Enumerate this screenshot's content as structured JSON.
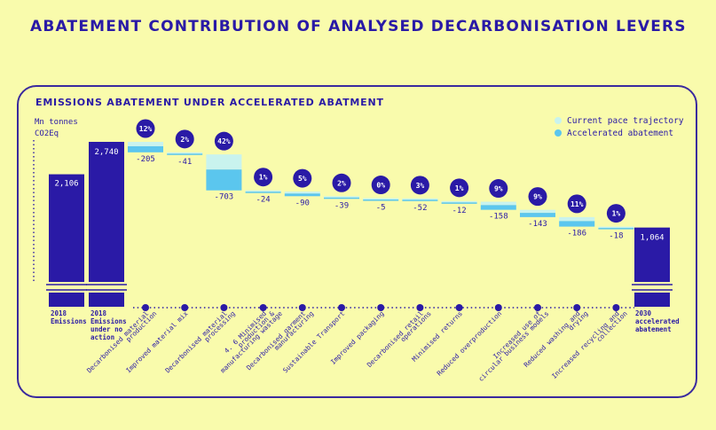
{
  "title": "ABATEMENT CONTRIBUTION OF ANALYSED DECARBONISATION LEVERS",
  "colors": {
    "background": "#f9fbac",
    "primary": "#2a1aa6",
    "accelerated": "#5bc6ee",
    "current_pace": "#c9f3ee",
    "badge": "#2a1aa6"
  },
  "chart_data": {
    "type": "waterfall",
    "title": "EMISSIONS ABATEMENT UNDER ACCELERATED ABATMENT",
    "ylabel": "Mn tonnes CO2Eq",
    "legend": {
      "current": "Current pace trajectory",
      "accelerated": "Accelerated abatement"
    },
    "start_bars": [
      {
        "label": "2018 Emissions",
        "value": 2106,
        "value_label": "2,106"
      },
      {
        "label": "2018 Emissions under no action",
        "value": 2740,
        "value_label": "2,740"
      }
    ],
    "levers": [
      {
        "label": "Decarbonised material production",
        "value": -205,
        "value_label": "-205",
        "pct": "12%"
      },
      {
        "label": "Improved material mix",
        "value": -41,
        "value_label": "-41",
        "pct": "2%"
      },
      {
        "label": "Decarbonised material processing",
        "value": -703,
        "value_label": "-703",
        "pct": "42%"
      },
      {
        "label": "4. 6 Minimised production & manufacturing wastage",
        "value": -24,
        "value_label": "-24",
        "pct": "1%"
      },
      {
        "label": "Decarbonised garment manufacturing",
        "value": -90,
        "value_label": "-90",
        "pct": "5%"
      },
      {
        "label": "Sustainable Transport",
        "value": -39,
        "value_label": "-39",
        "pct": "2%"
      },
      {
        "label": "Improved packaging",
        "value": -5,
        "value_label": "-5",
        "pct": "0%"
      },
      {
        "label": "Decarbonised retail operations",
        "value": -52,
        "value_label": "-52",
        "pct": "3%"
      },
      {
        "label": "Minimised returns",
        "value": -12,
        "value_label": "-12",
        "pct": "1%"
      },
      {
        "label": "Reduced overproduction",
        "value": -158,
        "value_label": "-158",
        "pct": "9%"
      },
      {
        "label": "Increased use of circular business models",
        "value": -143,
        "value_label": "-143",
        "pct": "9%"
      },
      {
        "label": "Reduced washing and drying",
        "value": -186,
        "value_label": "-186",
        "pct": "11%"
      },
      {
        "label": "Increased recycling and collection",
        "value": -18,
        "value_label": "-18",
        "pct": "1%"
      }
    ],
    "end_bar": {
      "label": "2030 accelerated abatement",
      "value": 1064,
      "value_label": "1,064"
    }
  }
}
